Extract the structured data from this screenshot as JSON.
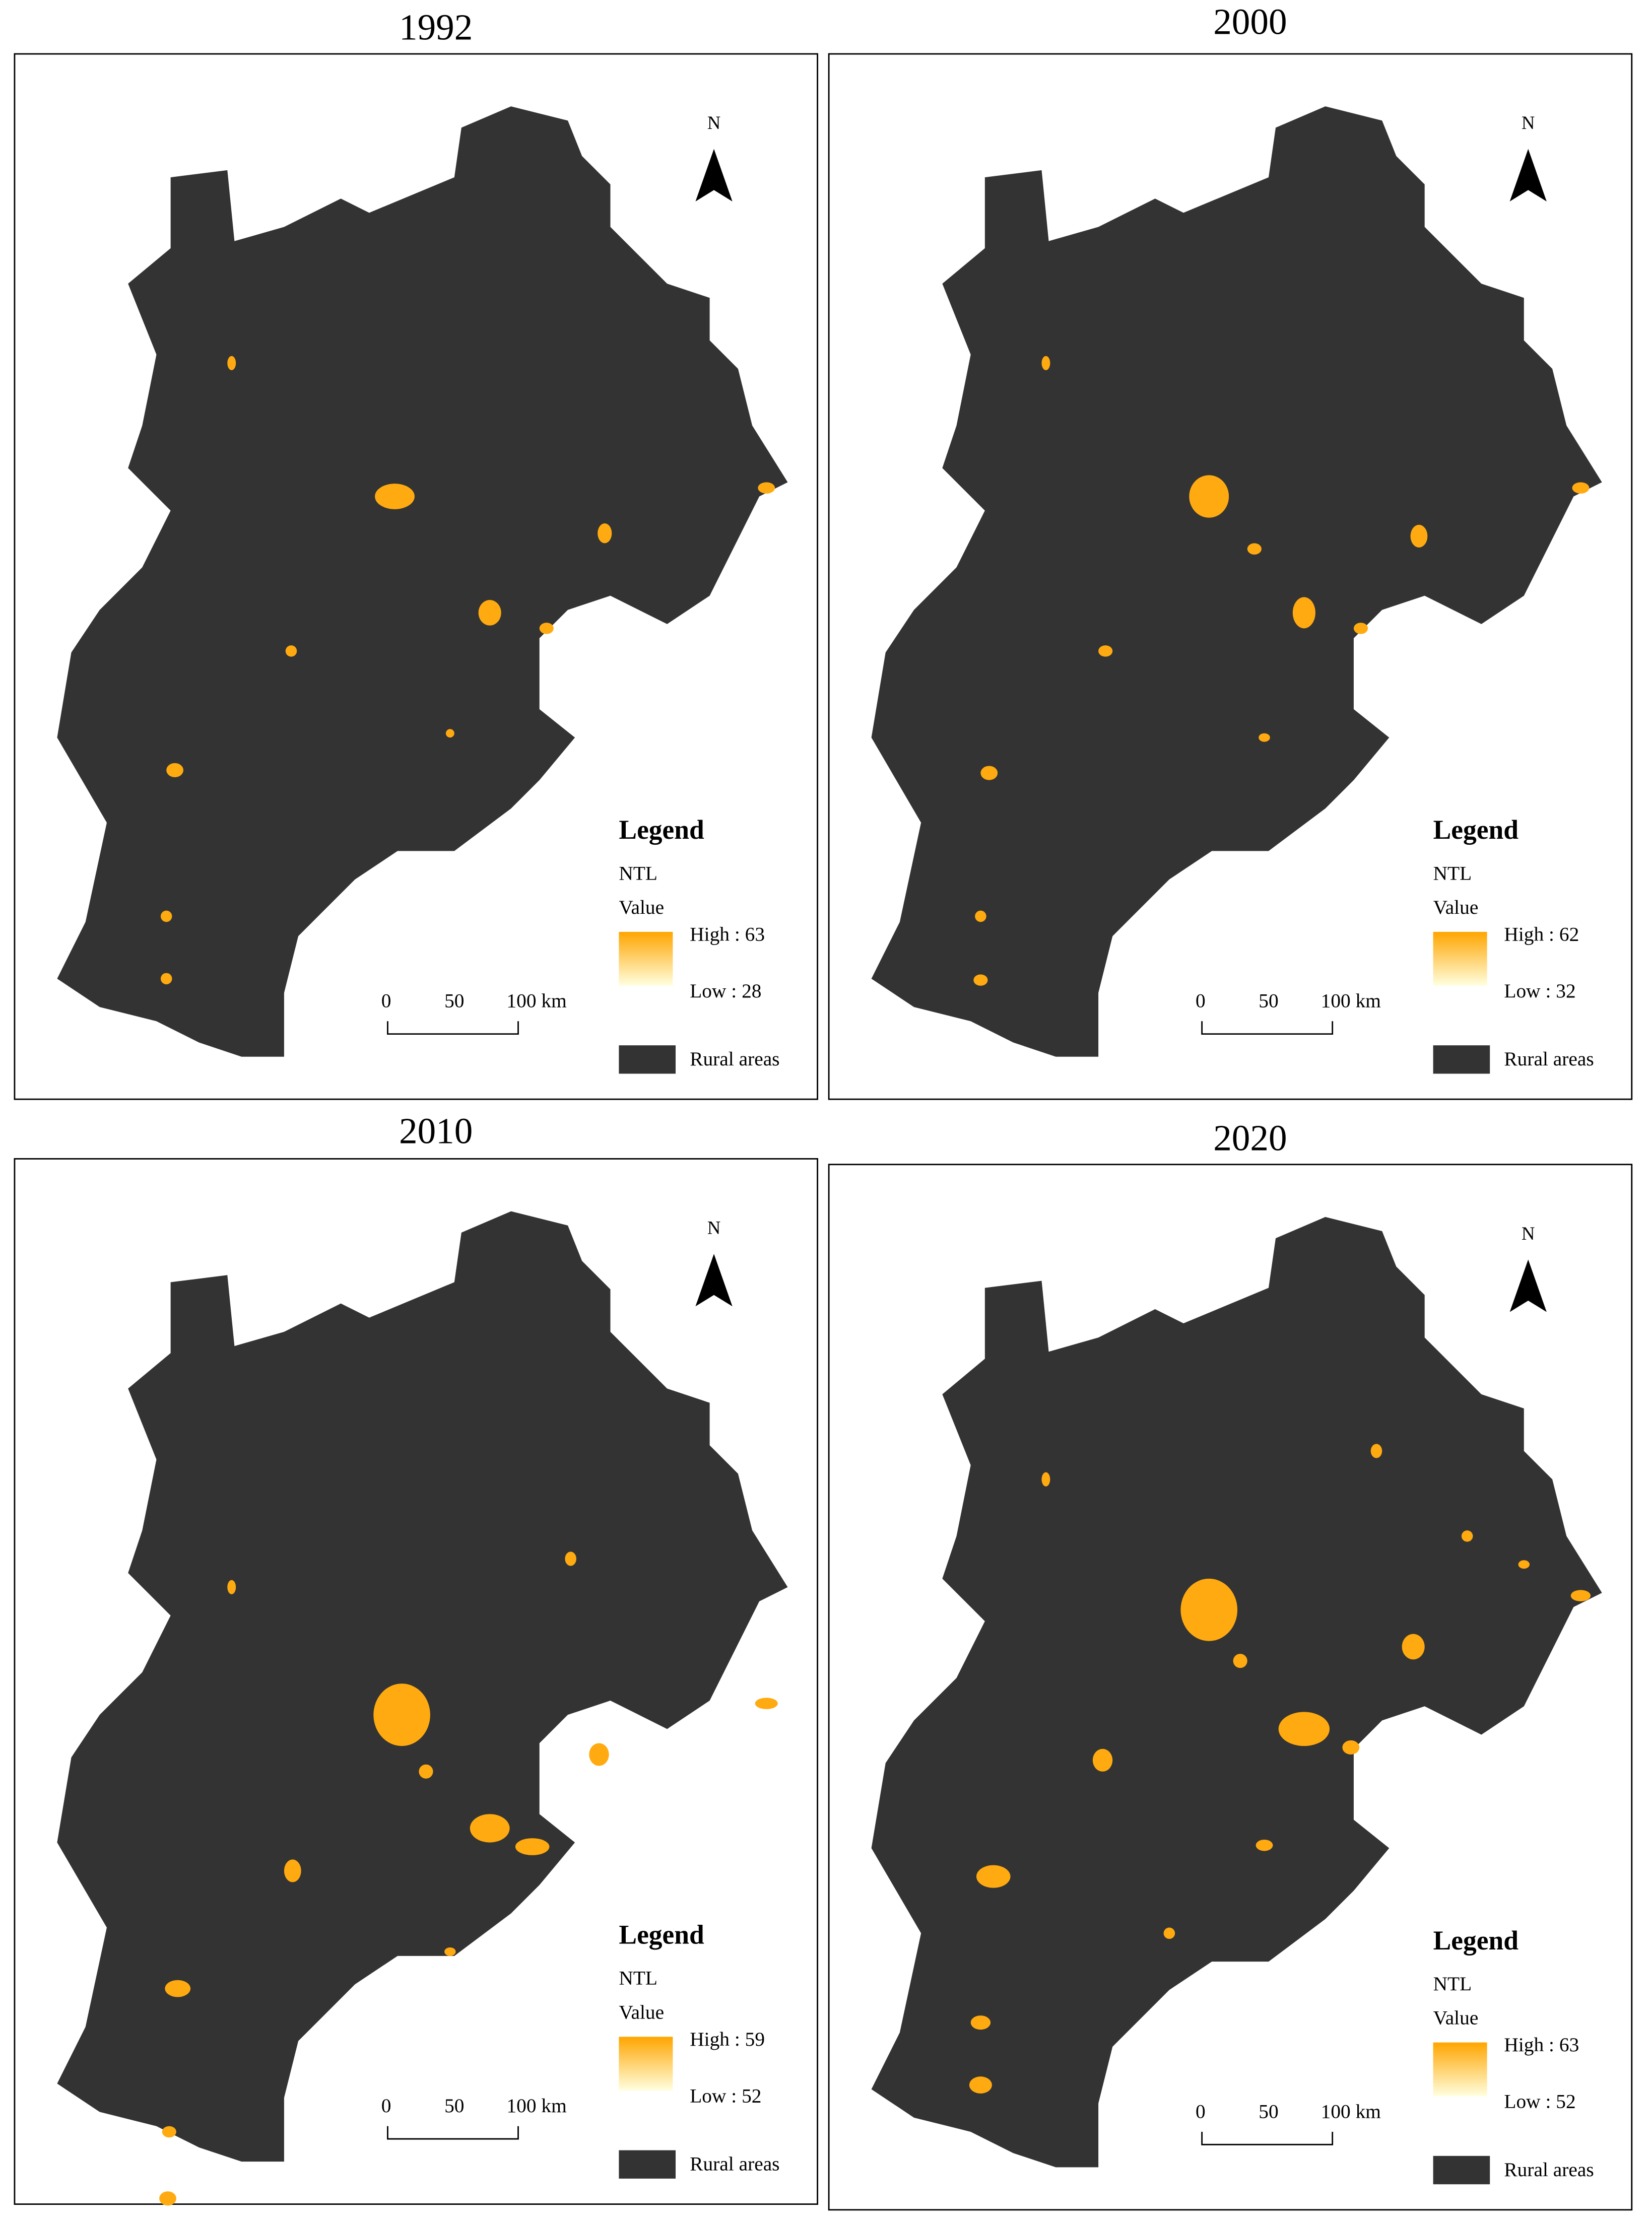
{
  "panels": [
    {
      "title": "1992",
      "north": "N",
      "legend": {
        "title": "Legend",
        "layer": "NTL",
        "field": "Value",
        "high": "High : 63",
        "low": "Low : 28",
        "rural": "Rural areas"
      },
      "scale": [
        "0",
        "50",
        "100 km"
      ]
    },
    {
      "title": "2000",
      "north": "N",
      "legend": {
        "title": "Legend",
        "layer": "NTL",
        "field": "Value",
        "high": "High : 62",
        "low": "Low : 32",
        "rural": "Rural areas"
      },
      "scale": [
        "0",
        "50",
        "100 km"
      ]
    },
    {
      "title": "2010",
      "north": "N",
      "legend": {
        "title": "Legend",
        "layer": "NTL",
        "field": "Value",
        "high": "High : 59",
        "low": "Low : 52",
        "rural": "Rural areas"
      },
      "scale": [
        "0",
        "50",
        "100 km"
      ]
    },
    {
      "title": "2020",
      "north": "N",
      "legend": {
        "title": "Legend",
        "layer": "NTL",
        "field": "Value",
        "high": "High : 63",
        "low": "Low : 52",
        "rural": "Rural areas"
      },
      "scale": [
        "0",
        "50",
        "100 km"
      ]
    }
  ]
}
